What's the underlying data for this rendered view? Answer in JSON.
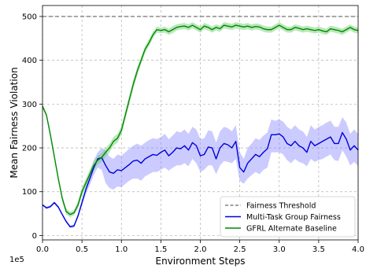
{
  "chart_data": {
    "type": "line",
    "title": "",
    "xlabel": "Environment Steps",
    "ylabel": "Mean Fairness Violation",
    "x_offset_label": "1e5",
    "xlim": [
      0,
      4.0
    ],
    "ylim": [
      -10,
      525
    ],
    "x_scale_note": "1e5",
    "xticks": [
      0.0,
      0.5,
      1.0,
      1.5,
      2.0,
      2.5,
      3.0,
      3.5,
      4.0
    ],
    "xtick_labels": [
      "0.0",
      "0.5",
      "1.0",
      "1.5",
      "2.0",
      "2.5",
      "3.0",
      "3.5",
      "4.0"
    ],
    "yticks": [
      0,
      100,
      200,
      300,
      400,
      500
    ],
    "ytick_labels": [
      "0",
      "100",
      "200",
      "300",
      "400",
      "500"
    ],
    "grid": true,
    "legend_position": "bottom-right",
    "threshold": {
      "name": "Fairness Threshold",
      "value": 500,
      "color": "#808080",
      "style": "dashed"
    },
    "series": [
      {
        "name": "Multi-Task Group Fairness",
        "color": "#0000dd",
        "band_color": "#8c8cff",
        "x": [
          0.0,
          0.05,
          0.1,
          0.15,
          0.2,
          0.25,
          0.3,
          0.35,
          0.4,
          0.45,
          0.5,
          0.55,
          0.6,
          0.65,
          0.7,
          0.75,
          0.8,
          0.85,
          0.9,
          0.95,
          1.0,
          1.05,
          1.1,
          1.15,
          1.2,
          1.25,
          1.3,
          1.35,
          1.4,
          1.45,
          1.5,
          1.55,
          1.6,
          1.65,
          1.7,
          1.75,
          1.8,
          1.85,
          1.9,
          1.95,
          2.0,
          2.05,
          2.1,
          2.15,
          2.2,
          2.25,
          2.3,
          2.35,
          2.4,
          2.45,
          2.5,
          2.55,
          2.6,
          2.65,
          2.7,
          2.75,
          2.8,
          2.85,
          2.9,
          2.95,
          3.0,
          3.05,
          3.1,
          3.15,
          3.2,
          3.25,
          3.3,
          3.35,
          3.4,
          3.45,
          3.5,
          3.55,
          3.6,
          3.65,
          3.7,
          3.75,
          3.8,
          3.85,
          3.9,
          3.95,
          4.0
        ],
        "values": [
          70,
          63,
          66,
          75,
          65,
          48,
          32,
          20,
          22,
          45,
          75,
          105,
          130,
          155,
          175,
          178,
          160,
          145,
          142,
          150,
          148,
          155,
          162,
          170,
          172,
          165,
          175,
          180,
          185,
          183,
          190,
          195,
          182,
          190,
          200,
          198,
          205,
          195,
          212,
          205,
          182,
          185,
          202,
          200,
          175,
          200,
          210,
          207,
          200,
          215,
          155,
          145,
          165,
          175,
          185,
          180,
          190,
          198,
          230,
          230,
          232,
          225,
          210,
          205,
          215,
          205,
          200,
          190,
          215,
          205,
          210,
          215,
          220,
          225,
          210,
          210,
          235,
          220,
          195,
          205,
          195
        ],
        "lower": [
          68,
          60,
          63,
          72,
          62,
          45,
          29,
          17,
          18,
          40,
          68,
          95,
          115,
          138,
          155,
          150,
          120,
          108,
          105,
          112,
          110,
          118,
          125,
          130,
          130,
          125,
          135,
          140,
          145,
          145,
          150,
          155,
          148,
          155,
          160,
          160,
          165,
          158,
          175,
          165,
          145,
          150,
          160,
          160,
          140,
          160,
          170,
          168,
          165,
          175,
          125,
          118,
          130,
          138,
          145,
          140,
          150,
          155,
          190,
          190,
          190,
          185,
          172,
          165,
          175,
          168,
          165,
          158,
          175,
          168,
          172,
          175,
          180,
          185,
          172,
          170,
          195,
          180,
          160,
          168,
          158
        ],
        "upper": [
          72,
          66,
          69,
          78,
          68,
          51,
          35,
          23,
          26,
          50,
          82,
          115,
          145,
          172,
          190,
          200,
          195,
          180,
          175,
          185,
          182,
          190,
          198,
          205,
          210,
          205,
          212,
          218,
          222,
          220,
          225,
          232,
          220,
          228,
          238,
          235,
          242,
          232,
          248,
          242,
          220,
          222,
          240,
          238,
          212,
          238,
          248,
          245,
          238,
          252,
          190,
          175,
          200,
          210,
          222,
          218,
          228,
          235,
          265,
          262,
          265,
          260,
          248,
          242,
          252,
          242,
          238,
          225,
          252,
          242,
          248,
          252,
          258,
          262,
          248,
          248,
          270,
          258,
          232,
          242,
          232
        ]
      },
      {
        "name": "GFRL Alternate Baseline",
        "color": "#008800",
        "band_color": "#66cc66",
        "x": [
          0.0,
          0.05,
          0.1,
          0.15,
          0.2,
          0.25,
          0.3,
          0.35,
          0.4,
          0.45,
          0.5,
          0.55,
          0.6,
          0.65,
          0.7,
          0.75,
          0.8,
          0.85,
          0.9,
          0.95,
          1.0,
          1.05,
          1.1,
          1.15,
          1.2,
          1.25,
          1.3,
          1.35,
          1.4,
          1.45,
          1.5,
          1.55,
          1.6,
          1.65,
          1.7,
          1.75,
          1.8,
          1.85,
          1.9,
          1.95,
          2.0,
          2.05,
          2.1,
          2.15,
          2.2,
          2.25,
          2.3,
          2.35,
          2.4,
          2.45,
          2.5,
          2.55,
          2.6,
          2.65,
          2.7,
          2.75,
          2.8,
          2.85,
          2.9,
          2.95,
          3.0,
          3.05,
          3.1,
          3.15,
          3.2,
          3.25,
          3.3,
          3.35,
          3.4,
          3.45,
          3.5,
          3.55,
          3.6,
          3.65,
          3.7,
          3.75,
          3.8,
          3.85,
          3.9,
          3.95,
          4.0
        ],
        "values": [
          295,
          275,
          230,
          180,
          130,
          85,
          55,
          48,
          52,
          70,
          100,
          120,
          140,
          160,
          172,
          178,
          190,
          200,
          215,
          222,
          240,
          275,
          310,
          345,
          375,
          400,
          425,
          440,
          458,
          470,
          468,
          470,
          465,
          470,
          475,
          477,
          478,
          475,
          480,
          475,
          470,
          478,
          475,
          470,
          475,
          472,
          480,
          478,
          476,
          480,
          478,
          476,
          478,
          475,
          477,
          476,
          472,
          470,
          470,
          475,
          480,
          475,
          470,
          470,
          475,
          473,
          470,
          472,
          470,
          468,
          470,
          467,
          465,
          472,
          470,
          468,
          465,
          470,
          475,
          470,
          468
        ],
        "lower": [
          290,
          270,
          225,
          175,
          125,
          78,
          48,
          42,
          46,
          62,
          90,
          110,
          130,
          150,
          162,
          168,
          180,
          190,
          205,
          212,
          230,
          265,
          300,
          335,
          365,
          392,
          417,
          432,
          450,
          463,
          462,
          463,
          458,
          462,
          468,
          470,
          471,
          468,
          473,
          468,
          463,
          471,
          468,
          463,
          468,
          465,
          473,
          471,
          469,
          473,
          471,
          469,
          471,
          468,
          470,
          469,
          465,
          463,
          463,
          468,
          473,
          468,
          463,
          463,
          468,
          466,
          463,
          465,
          463,
          461,
          463,
          460,
          458,
          465,
          463,
          461,
          458,
          463,
          468,
          463,
          461
        ],
        "upper": [
          300,
          280,
          235,
          185,
          135,
          92,
          62,
          54,
          58,
          78,
          110,
          130,
          150,
          170,
          182,
          188,
          200,
          210,
          225,
          232,
          250,
          285,
          320,
          355,
          385,
          408,
          433,
          448,
          466,
          477,
          474,
          477,
          472,
          478,
          482,
          484,
          485,
          482,
          487,
          482,
          477,
          485,
          482,
          477,
          482,
          479,
          487,
          485,
          483,
          487,
          485,
          483,
          485,
          482,
          484,
          483,
          479,
          477,
          477,
          482,
          487,
          482,
          477,
          477,
          482,
          480,
          477,
          479,
          477,
          475,
          477,
          474,
          472,
          479,
          477,
          475,
          472,
          477,
          482,
          477,
          475
        ]
      }
    ]
  }
}
